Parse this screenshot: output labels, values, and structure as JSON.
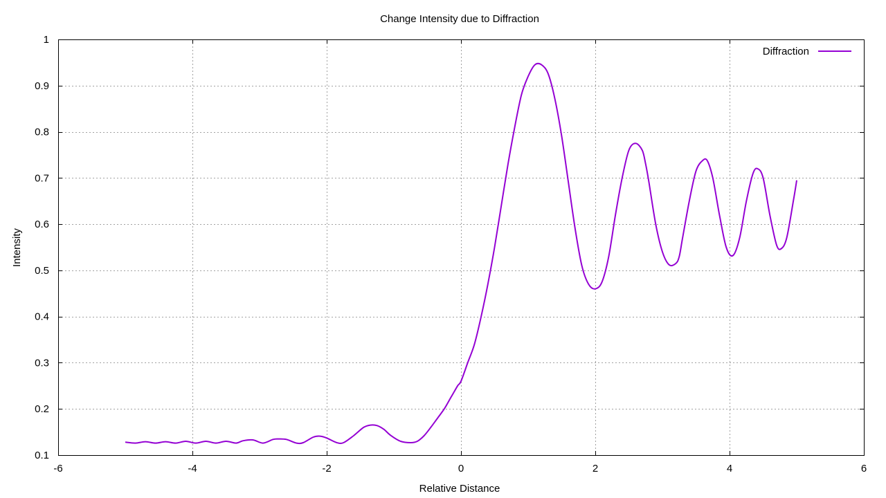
{
  "chart_data": {
    "type": "line",
    "title": "Change Intensity due to Diffraction",
    "xlabel": "Relative Distance",
    "ylabel": "Intensity",
    "xlim": [
      -6,
      6
    ],
    "ylim": [
      0.1,
      1
    ],
    "x_ticks": [
      "-6",
      "-4",
      "-2",
      "0",
      "2",
      "4",
      "6"
    ],
    "y_ticks": [
      "0.1",
      "0.2",
      "0.3",
      "0.4",
      "0.5",
      "0.6",
      "0.7",
      "0.8",
      "0.9",
      "1"
    ],
    "grid": true,
    "legend_position": "top-right",
    "series": [
      {
        "name": "Diffraction",
        "color": "#9400d3",
        "x": [
          -5.0,
          -4.85,
          -4.7,
          -4.55,
          -4.4,
          -4.25,
          -4.1,
          -3.95,
          -3.8,
          -3.65,
          -3.5,
          -3.35,
          -3.25,
          -3.1,
          -2.95,
          -2.8,
          -2.72,
          -2.6,
          -2.45,
          -2.35,
          -2.2,
          -2.1,
          -2.0,
          -1.85,
          -1.75,
          -1.6,
          -1.45,
          -1.35,
          -1.25,
          -1.15,
          -1.05,
          -0.9,
          -0.75,
          -0.65,
          -0.55,
          -0.45,
          -0.35,
          -0.25,
          -0.15,
          -0.05,
          0.0,
          0.1,
          0.2,
          0.3,
          0.4,
          0.5,
          0.6,
          0.7,
          0.8,
          0.9,
          1.0,
          1.1,
          1.2,
          1.3,
          1.4,
          1.5,
          1.6,
          1.7,
          1.8,
          1.9,
          2.0,
          2.1,
          2.2,
          2.3,
          2.4,
          2.5,
          2.6,
          2.7,
          2.75,
          2.8,
          2.9,
          3.0,
          3.1,
          3.2,
          3.25,
          3.3,
          3.4,
          3.5,
          3.6,
          3.67,
          3.75,
          3.85,
          3.95,
          4.05,
          4.15,
          4.25,
          4.35,
          4.42,
          4.5,
          4.6,
          4.7,
          4.77,
          4.85,
          4.95,
          5.0
        ],
        "y": [
          0.128,
          0.126,
          0.129,
          0.126,
          0.129,
          0.126,
          0.13,
          0.126,
          0.13,
          0.126,
          0.13,
          0.126,
          0.131,
          0.133,
          0.126,
          0.134,
          0.135,
          0.134,
          0.126,
          0.127,
          0.139,
          0.141,
          0.137,
          0.127,
          0.127,
          0.142,
          0.16,
          0.165,
          0.164,
          0.156,
          0.143,
          0.13,
          0.127,
          0.13,
          0.142,
          0.16,
          0.18,
          0.2,
          0.225,
          0.25,
          0.26,
          0.3,
          0.34,
          0.4,
          0.47,
          0.55,
          0.64,
          0.73,
          0.81,
          0.88,
          0.92,
          0.945,
          0.945,
          0.925,
          0.87,
          0.79,
          0.69,
          0.59,
          0.51,
          0.47,
          0.46,
          0.475,
          0.53,
          0.62,
          0.7,
          0.76,
          0.775,
          0.76,
          0.73,
          0.69,
          0.6,
          0.54,
          0.512,
          0.515,
          0.53,
          0.57,
          0.65,
          0.715,
          0.738,
          0.737,
          0.7,
          0.62,
          0.55,
          0.532,
          0.57,
          0.65,
          0.71,
          0.72,
          0.7,
          0.62,
          0.555,
          0.547,
          0.57,
          0.65,
          0.695
        ]
      }
    ]
  }
}
